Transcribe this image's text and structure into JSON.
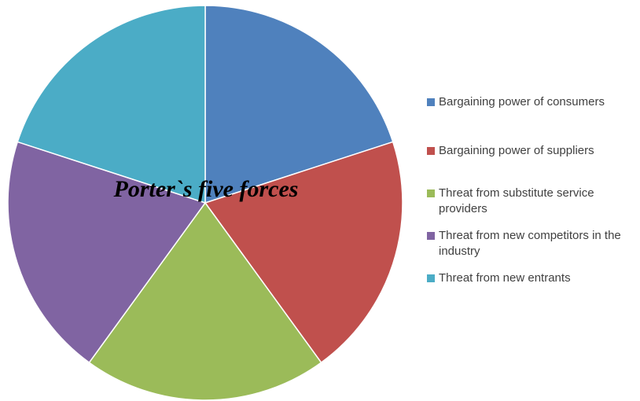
{
  "chart_data": {
    "type": "pie",
    "title": "Porter`s five forces",
    "legend_position": "right",
    "slices": [
      {
        "label": "Bargaining power of consumers",
        "value": 20,
        "color": "#4F81BD"
      },
      {
        "label": "Bargaining power of suppliers",
        "value": 20,
        "color": "#C0504D"
      },
      {
        "label": "Threat from substitute service providers",
        "value": 20,
        "color": "#9BBB59"
      },
      {
        "label": "Threat from new competitors in the industry",
        "value": 20,
        "color": "#8064A2"
      },
      {
        "label": "Threat from new entrants",
        "value": 20,
        "color": "#4BACC6"
      }
    ]
  }
}
